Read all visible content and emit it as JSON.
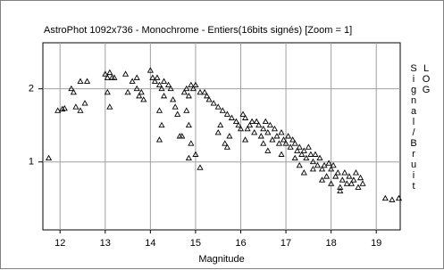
{
  "chart_data": {
    "type": "scatter",
    "title": "AstroPhot 1092x736 - Monochrome - Entiers(16bits signés)   [Zoom = 1]",
    "x_label": "Magnitude",
    "y_label": "LOG Signal/Bruit",
    "xlim": [
      11.62,
      19.53
    ],
    "ylim": [
      0.07,
      2.63
    ],
    "xticks": [
      12,
      13,
      14,
      15,
      16,
      17,
      18,
      19
    ],
    "yticks": [
      1,
      2
    ],
    "grid": true,
    "color": "#000000",
    "x": [
      11.75,
      11.95,
      12.05,
      12.1,
      12.25,
      12.3,
      12.35,
      12.45,
      12.45,
      12.6,
      12.55,
      13.0,
      13.05,
      13.1,
      13.15,
      13.05,
      13.1,
      13.2,
      13.45,
      13.5,
      13.6,
      13.7,
      13.7,
      13.75,
      13.8,
      13.85,
      14.0,
      14.05,
      14.1,
      14.15,
      14.2,
      14.25,
      14.3,
      14.2,
      14.25,
      14.2,
      14.3,
      14.4,
      14.45,
      14.5,
      14.55,
      14.6,
      14.65,
      14.7,
      14.75,
      14.8,
      14.85,
      14.9,
      14.95,
      15.0,
      14.8,
      14.85,
      14.9,
      14.85,
      15.0,
      15.1,
      15.1,
      15.2,
      15.25,
      15.3,
      15.4,
      15.5,
      15.6,
      15.7,
      15.8,
      15.5,
      15.55,
      15.65,
      15.75,
      15.9,
      15.95,
      16.0,
      16.05,
      16.1,
      16.15,
      16.2,
      16.25,
      16.3,
      16.35,
      16.4,
      16.45,
      16.5,
      16.55,
      16.6,
      16.65,
      16.7,
      16.75,
      16.8,
      16.85,
      16.9,
      16.95,
      17.0,
      17.05,
      17.1,
      17.15,
      17.2,
      17.25,
      17.3,
      17.35,
      17.4,
      17.45,
      17.5,
      17.55,
      17.6,
      17.65,
      17.7,
      17.75,
      17.8,
      17.85,
      17.9,
      17.95,
      18.0,
      18.05,
      18.1,
      18.15,
      18.2,
      18.25,
      18.3,
      18.35,
      18.4,
      18.45,
      18.5,
      18.55,
      18.6,
      18.65,
      18.7,
      16.5,
      16.9,
      17.3,
      17.6,
      17.8,
      18.0,
      18.2,
      17.2,
      19.2,
      19.35,
      19.5,
      16.1,
      15.7,
      16.6,
      17.4
    ],
    "y": [
      1.05,
      1.7,
      1.72,
      1.73,
      2.0,
      1.95,
      1.75,
      2.1,
      1.7,
      2.1,
      1.8,
      2.2,
      2.15,
      2.22,
      2.15,
      1.95,
      1.75,
      2.15,
      2.2,
      1.95,
      2.1,
      2.15,
      2.0,
      1.9,
      1.95,
      1.85,
      2.25,
      2.15,
      2.1,
      2.15,
      2.05,
      2.0,
      1.9,
      1.7,
      1.5,
      1.3,
      2.1,
      2.05,
      2.0,
      1.85,
      1.75,
      1.65,
      1.35,
      1.35,
      1.95,
      2.0,
      1.9,
      2.05,
      2.0,
      2.05,
      1.7,
      1.5,
      1.25,
      1.05,
      1.1,
      1.95,
      0.92,
      1.95,
      1.9,
      1.85,
      1.8,
      1.75,
      1.7,
      1.65,
      1.6,
      1.4,
      1.5,
      1.25,
      1.35,
      1.55,
      1.5,
      1.45,
      1.65,
      1.6,
      1.45,
      1.5,
      1.55,
      1.4,
      1.55,
      1.5,
      1.35,
      1.45,
      1.55,
      1.4,
      1.5,
      1.3,
      1.45,
      1.35,
      1.25,
      1.4,
      1.3,
      1.25,
      1.35,
      1.2,
      1.3,
      1.25,
      1.15,
      1.2,
      1.1,
      1.15,
      1.05,
      1.2,
      1.1,
      1.0,
      1.1,
      0.95,
      1.05,
      0.9,
      0.95,
      0.8,
      0.98,
      0.9,
      0.95,
      0.8,
      0.85,
      0.65,
      0.75,
      0.85,
      0.7,
      0.8,
      0.7,
      0.75,
      0.85,
      0.65,
      0.78,
      0.7,
      1.25,
      1.1,
      0.95,
      0.9,
      0.75,
      0.7,
      0.6,
      1.05,
      0.5,
      0.48,
      0.5,
      1.3,
      1.2,
      1.15,
      0.85
    ]
  }
}
